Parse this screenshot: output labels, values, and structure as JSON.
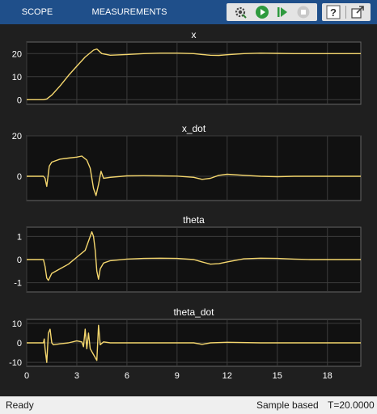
{
  "toolbar": {
    "tabs": [
      {
        "label": "SCOPE"
      },
      {
        "label": "MEASUREMENTS"
      }
    ],
    "buttons": [
      "settings-icon",
      "run-icon",
      "step-forward-icon",
      "stop-icon",
      "help-icon",
      "undock-icon"
    ]
  },
  "status": {
    "ready": "Ready",
    "mode": "Sample based",
    "time": "T=20.0000"
  },
  "colors": {
    "signal": "#f5d76e",
    "axes_bg": "#111111",
    "grid": "#3c3c3c",
    "text": "#ffffff",
    "toolbar": "#1f4f8a"
  },
  "chart_data": [
    {
      "type": "line",
      "title": "x",
      "xlim": [
        0,
        20
      ],
      "ylim": [
        -2,
        25
      ],
      "yticks": [
        0,
        10,
        20
      ],
      "xticks": [
        0,
        3,
        6,
        9,
        12,
        15,
        18
      ],
      "x": [
        0,
        0.5,
        1.0,
        1.2,
        1.5,
        2.0,
        2.5,
        3.0,
        3.5,
        4.0,
        4.2,
        4.5,
        5.0,
        6.0,
        7.0,
        8.0,
        9.0,
        10.0,
        10.5,
        11.0,
        11.5,
        12.0,
        13.0,
        14.0,
        15.0,
        16.0,
        17.0,
        18.0,
        19.0,
        20.0
      ],
      "y": [
        0,
        0,
        0,
        0.3,
        2,
        6,
        10.5,
        14.5,
        18.5,
        21.5,
        22,
        20,
        19.3,
        19.6,
        20,
        20.2,
        20.2,
        20,
        19.6,
        19.3,
        19.2,
        19.5,
        20,
        20.2,
        20.1,
        20,
        20,
        20,
        20,
        20
      ]
    },
    {
      "type": "line",
      "title": "x_dot",
      "xlim": [
        0,
        20
      ],
      "ylim": [
        -12,
        20
      ],
      "yticks": [
        0,
        20
      ],
      "xticks": [
        0,
        3,
        6,
        9,
        12,
        15,
        18
      ],
      "x": [
        0,
        1.0,
        1.1,
        1.2,
        1.35,
        1.5,
        2.0,
        2.5,
        3.0,
        3.3,
        3.6,
        3.8,
        4.0,
        4.15,
        4.3,
        4.45,
        4.6,
        5.0,
        6.0,
        7.0,
        8.0,
        9.0,
        10.0,
        10.5,
        11.0,
        11.5,
        12.0,
        13.0,
        14.0,
        15.0,
        16.0,
        17.0,
        18.0,
        19.0,
        20.0
      ],
      "y": [
        0,
        0,
        -1,
        -5,
        5,
        7,
        8.5,
        9,
        9.5,
        10,
        8,
        4,
        -6,
        -9.5,
        -4,
        2.5,
        -1,
        -0.5,
        0.2,
        0.3,
        0.2,
        0.1,
        -0.5,
        -1.5,
        -1,
        0.5,
        1,
        0.5,
        0,
        -0.2,
        0,
        0,
        0,
        0,
        0
      ]
    },
    {
      "type": "line",
      "title": "theta",
      "xlim": [
        0,
        20
      ],
      "ylim": [
        -1.4,
        1.4
      ],
      "yticks": [
        -1,
        0,
        1
      ],
      "xticks": [
        0,
        3,
        6,
        9,
        12,
        15,
        18
      ],
      "x": [
        0,
        1.0,
        1.1,
        1.2,
        1.3,
        1.5,
        2.0,
        2.5,
        3.0,
        3.5,
        3.8,
        3.9,
        4.0,
        4.1,
        4.2,
        4.3,
        4.4,
        4.6,
        5.0,
        6.0,
        7.0,
        8.0,
        9.0,
        10.0,
        10.5,
        11.0,
        11.5,
        12.0,
        13.0,
        14.0,
        15.0,
        16.0,
        17.0,
        18.0,
        19.0,
        20.0
      ],
      "y": [
        0,
        0,
        -0.3,
        -0.8,
        -0.9,
        -0.6,
        -0.4,
        -0.2,
        0.1,
        0.4,
        1.0,
        1.2,
        1.0,
        0.4,
        -0.5,
        -0.85,
        -0.4,
        -0.15,
        -0.05,
        0.02,
        0.05,
        0.06,
        0.05,
        0,
        -0.1,
        -0.2,
        -0.18,
        -0.1,
        0.03,
        0.06,
        0.05,
        0.02,
        0,
        0,
        0,
        0
      ]
    },
    {
      "type": "line",
      "title": "theta_dot",
      "xlim": [
        0,
        20
      ],
      "ylim": [
        -12,
        12
      ],
      "yticks": [
        -10,
        0,
        10
      ],
      "xticks": [
        0,
        3,
        6,
        9,
        12,
        15,
        18
      ],
      "x": [
        0,
        1.0,
        1.05,
        1.1,
        1.2,
        1.3,
        1.4,
        1.5,
        1.6,
        2.0,
        2.5,
        3.0,
        3.3,
        3.4,
        3.5,
        3.6,
        3.7,
        3.8,
        4.0,
        4.2,
        4.3,
        4.4,
        4.6,
        5.0,
        6.0,
        8.0,
        10.0,
        10.5,
        11.0,
        12.0,
        14.0,
        16.0,
        18.0,
        20.0
      ],
      "y": [
        0,
        0,
        2,
        -3,
        -10,
        5,
        7,
        0,
        -1,
        -0.5,
        0,
        1,
        0.5,
        -2,
        7,
        -3,
        5,
        -3,
        -6,
        -9,
        9,
        -1,
        0.5,
        0,
        0,
        0,
        0,
        -0.8,
        0,
        0.3,
        0,
        0,
        0,
        0
      ]
    }
  ]
}
